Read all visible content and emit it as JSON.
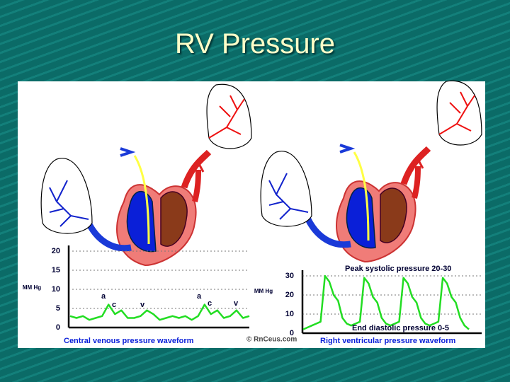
{
  "title": "RV Pressure",
  "left_chart": {
    "y_unit": "MM Hg",
    "ylim": [
      0,
      20
    ],
    "yticks": [
      0,
      5,
      10,
      15,
      20
    ],
    "wave_labels": [
      "a",
      "c",
      "v",
      "a",
      "c",
      "v"
    ],
    "waveform": [
      3,
      2.5,
      3,
      2,
      2.5,
      3,
      6,
      3.5,
      4.5,
      2.5,
      2.5,
      3,
      4.5,
      3.5,
      2,
      2.5,
      3,
      2.5,
      3,
      2,
      3,
      6,
      3.5,
      4.5,
      2.5,
      3,
      4.5,
      2.5,
      3
    ],
    "color": "#22dd22",
    "caption": "Central venous pressure waveform"
  },
  "credit": "© RnCeus.com",
  "right_chart": {
    "y_unit": "MM Hg",
    "ylim": [
      0,
      30
    ],
    "yticks": [
      0,
      10,
      20,
      30
    ],
    "annotations": [
      "Peak systolic pressure 20-30",
      "End diastolic pressure 0-5"
    ],
    "waveform": [
      2,
      3,
      4,
      5,
      6,
      30,
      27,
      20,
      17,
      8,
      5,
      4,
      5,
      6,
      29,
      26,
      19,
      16,
      8,
      5,
      4,
      5,
      6,
      29,
      26,
      19,
      16,
      8,
      5,
      4,
      5,
      6,
      29,
      26,
      19,
      16,
      8,
      4,
      2
    ],
    "color": "#22dd22",
    "caption": "Right ventricular pressure waveform"
  }
}
